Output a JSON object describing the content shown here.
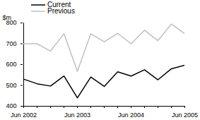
{
  "chart_data": {
    "type": "line",
    "y_label": "$m",
    "categories": [
      "Jun 2002",
      null,
      null,
      null,
      "Jun 2003",
      null,
      null,
      null,
      "Jun 2004",
      null,
      null,
      null,
      "Jun 2005"
    ],
    "series": [
      {
        "name": "Current",
        "color": "#000000",
        "values": [
          530,
          508,
          497,
          545,
          440,
          540,
          495,
          565,
          545,
          575,
          527,
          580,
          597
        ]
      },
      {
        "name": "Previous",
        "color": "#c0c0c0",
        "values": [
          700,
          700,
          665,
          748,
          568,
          748,
          710,
          750,
          700,
          765,
          715,
          795,
          748
        ]
      }
    ],
    "ylim": [
      400,
      800
    ],
    "yticks": [
      400,
      500,
      600,
      700,
      800
    ],
    "grid": false,
    "legend": "top-left"
  }
}
